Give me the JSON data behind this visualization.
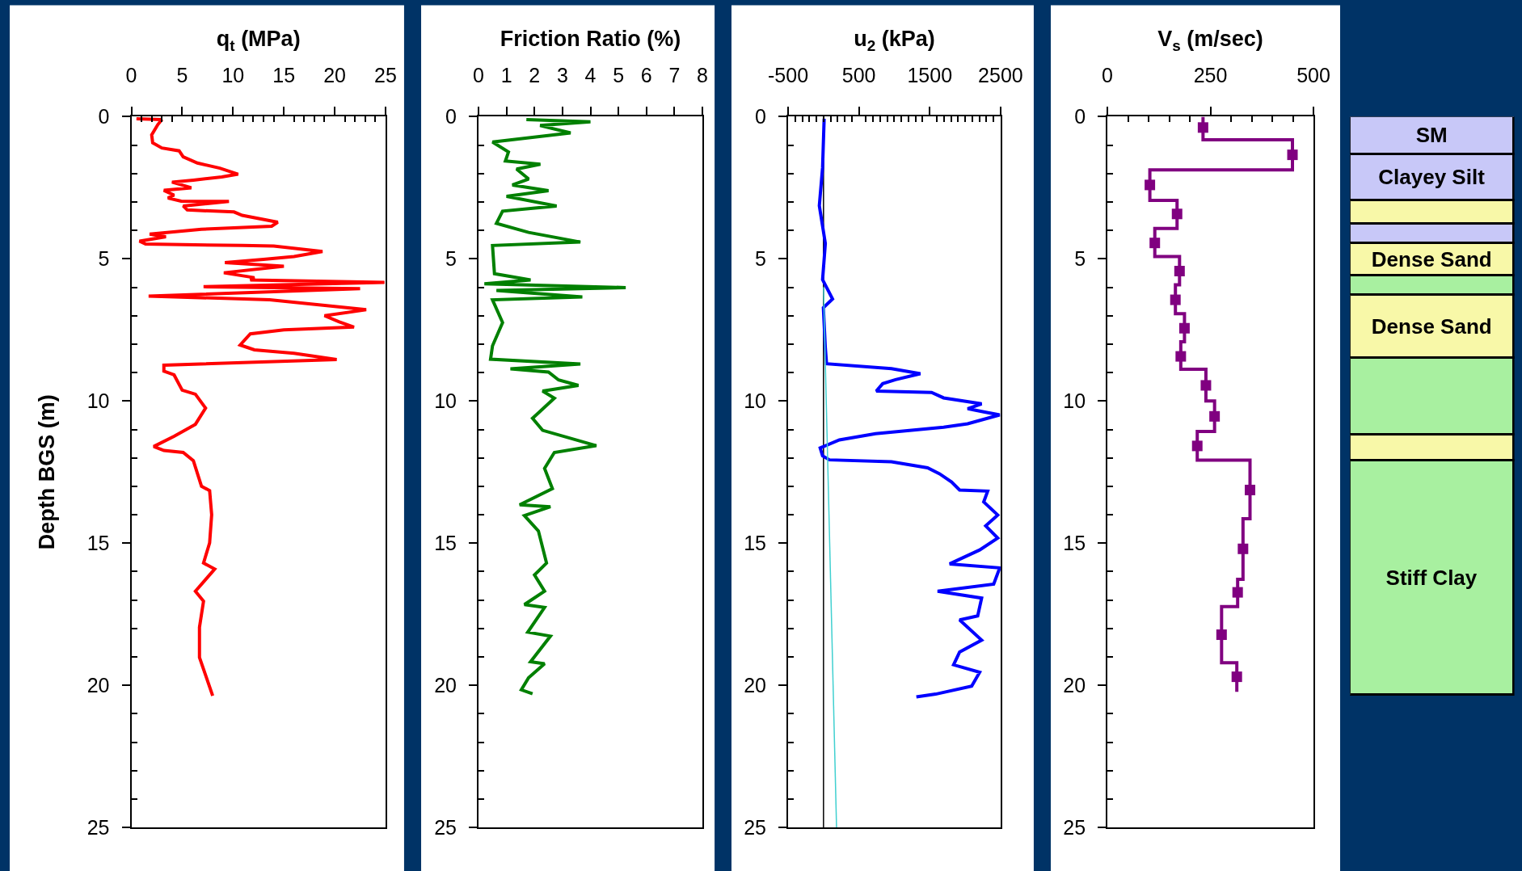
{
  "chart_data": [
    {
      "type": "line",
      "xlabel": "q$_{t}$ (MPa)",
      "ylabel": "Depth BGS (m)",
      "xlim": [
        0,
        25
      ],
      "ylim": [
        25,
        0
      ],
      "xticks": [
        0,
        {
          "value": 1,
          "label": null
        },
        {
          "value": 2,
          "label": null
        },
        {
          "value": 3,
          "label": null
        },
        {
          "value": 4,
          "label": null
        },
        5,
        {
          "value": 6,
          "label": null
        },
        {
          "value": 7,
          "label": null
        },
        {
          "value": 8,
          "label": null
        },
        {
          "value": 9,
          "label": null
        },
        10,
        {
          "value": 11,
          "label": null
        },
        {
          "value": 12,
          "label": null
        },
        {
          "value": 13,
          "label": null
        },
        {
          "value": 14,
          "label": null
        },
        15,
        {
          "value": 16,
          "label": null
        },
        {
          "value": 17,
          "label": null
        },
        {
          "value": 18,
          "label": null
        },
        {
          "value": 19,
          "label": null
        },
        20,
        {
          "value": 21,
          "label": null
        },
        {
          "value": 22,
          "label": null
        },
        {
          "value": 23,
          "label": null
        },
        {
          "value": 24,
          "label": null
        },
        25
      ],
      "yticks": [
        0,
        {
          "value": 1,
          "label": null
        },
        {
          "value": 2,
          "label": null
        },
        {
          "value": 3,
          "label": null
        },
        {
          "value": 4,
          "label": null
        },
        5,
        {
          "value": 6,
          "label": null
        },
        {
          "value": 7,
          "label": null
        },
        {
          "value": 8,
          "label": null
        },
        {
          "value": 9,
          "label": null
        },
        10,
        {
          "value": 11,
          "label": null
        },
        {
          "value": 12,
          "label": null
        },
        {
          "value": 13,
          "label": null
        },
        {
          "value": 14,
          "label": null
        },
        15,
        {
          "value": 16,
          "label": null
        },
        {
          "value": 17,
          "label": null
        },
        {
          "value": 18,
          "label": null
        },
        {
          "value": 19,
          "label": null
        },
        20,
        {
          "value": 21,
          "label": null
        },
        {
          "value": 22,
          "label": null
        },
        {
          "value": 23,
          "label": null
        },
        {
          "value": 24,
          "label": null
        },
        25
      ],
      "series": [
        {
          "color": "#ff0000",
          "x": [
            0.5,
            3.0,
            2.6,
            2.0,
            2.1,
            3.0,
            4.7,
            5.1,
            6.5,
            8.7,
            10.5,
            8.9,
            6.1,
            4.0,
            5.9,
            3.2,
            4.2,
            3.6,
            4.9,
            9.6,
            5.1,
            5.5,
            10.1,
            10.9,
            14.4,
            13.8,
            6.9,
            1.8,
            3.4,
            0.8,
            1.4,
            10.9,
            14.0,
            18.8,
            16.0,
            13.0,
            9.2,
            15.0,
            9.1,
            12.1,
            11.7,
            24.9,
            7.1,
            22.5,
            1.7,
            13.6,
            23.1,
            19.0,
            20.4,
            21.9,
            15.0,
            11.7,
            10.7,
            12.1,
            16.0,
            20.2,
            3.2,
            3.2,
            4.2,
            5.0,
            6.3,
            7.3,
            6.3,
            4.2,
            2.2,
            3.2,
            5.1,
            6.1,
            6.9,
            7.7,
            7.9,
            7.7,
            7.1,
            8.2,
            6.3,
            7.1,
            6.7,
            6.7,
            8.0
          ],
          "values": [
            0.07,
            0.1,
            0.28,
            0.64,
            0.92,
            1.1,
            1.2,
            1.41,
            1.63,
            1.81,
            2.02,
            2.12,
            2.23,
            2.3,
            2.5,
            2.59,
            2.76,
            2.86,
            2.97,
            2.98,
            3.14,
            3.28,
            3.35,
            3.47,
            3.71,
            3.85,
            3.96,
            4.13,
            4.22,
            4.38,
            4.48,
            4.53,
            4.55,
            4.74,
            4.92,
            5.02,
            5.13,
            5.26,
            5.49,
            5.66,
            5.74,
            5.83,
            5.98,
            6.05,
            6.31,
            6.44,
            6.79,
            7.0,
            7.21,
            7.4,
            7.5,
            7.64,
            8.03,
            8.2,
            8.32,
            8.54,
            8.74,
            8.95,
            9.08,
            9.62,
            9.76,
            10.25,
            10.82,
            11.24,
            11.6,
            11.74,
            11.81,
            12.1,
            13.0,
            13.15,
            14.0,
            14.99,
            15.7,
            15.91,
            16.69,
            17.04,
            17.96,
            19.02,
            20.37
          ]
        }
      ]
    },
    {
      "type": "line",
      "xlabel": "Friction Ratio (%)",
      "xlim": [
        0,
        8
      ],
      "ylim": [
        25,
        0
      ],
      "xticks": [
        0,
        1,
        2,
        3,
        4,
        5,
        6,
        7,
        8
      ],
      "yticks": [
        0,
        {
          "value": 1,
          "label": null
        },
        {
          "value": 2,
          "label": null
        },
        {
          "value": 3,
          "label": null
        },
        {
          "value": 4,
          "label": null
        },
        5,
        {
          "value": 6,
          "label": null
        },
        {
          "value": 7,
          "label": null
        },
        {
          "value": 8,
          "label": null
        },
        {
          "value": 9,
          "label": null
        },
        10,
        {
          "value": 11,
          "label": null
        },
        {
          "value": 12,
          "label": null
        },
        {
          "value": 13,
          "label": null
        },
        {
          "value": 14,
          "label": null
        },
        15,
        {
          "value": 16,
          "label": null
        },
        {
          "value": 17,
          "label": null
        },
        {
          "value": 18,
          "label": null
        },
        {
          "value": 19,
          "label": null
        },
        20,
        {
          "value": 21,
          "label": null
        },
        {
          "value": 22,
          "label": null
        },
        {
          "value": 23,
          "label": null
        },
        {
          "value": 24,
          "label": null
        },
        25
      ],
      "series": [
        {
          "color": "#008000",
          "x": [
            1.71,
            4.0,
            2.2,
            3.29,
            0.5,
            1.07,
            0.96,
            2.21,
            1.36,
            1.79,
            1.21,
            2.5,
            1.0,
            2.79,
            0.86,
            0.64,
            1.79,
            3.64,
            0.5,
            0.57,
            1.86,
            0.21,
            5.26,
            0.64,
            3.71,
            0.5,
            0.86,
            0.5,
            0.43,
            3.64,
            1.14,
            2.5,
            2.86,
            3.57,
            2.29,
            2.71,
            1.93,
            2.29,
            4.21,
            2.71,
            2.36,
            2.64,
            1.47,
            2.57,
            1.64,
            2.14,
            2.43,
            2.0,
            2.36,
            1.64,
            2.36,
            1.76,
            2.57,
            1.86,
            2.36,
            1.79,
            1.53,
            1.93
          ],
          "values": [
            0.1,
            0.18,
            0.31,
            0.57,
            0.89,
            1.24,
            1.56,
            1.67,
            1.84,
            2.19,
            2.4,
            2.6,
            2.8,
            3.14,
            3.32,
            3.75,
            4.07,
            4.41,
            4.53,
            5.52,
            5.74,
            5.88,
            6.01,
            6.11,
            6.34,
            6.44,
            7.24,
            8.06,
            8.53,
            8.7,
            8.87,
            8.98,
            9.26,
            9.45,
            9.65,
            9.9,
            10.61,
            11.03,
            11.57,
            11.81,
            12.37,
            13.08,
            13.65,
            13.72,
            14.03,
            14.57,
            15.7,
            16.12,
            16.69,
            17.16,
            17.26,
            18.13,
            18.27,
            19.17,
            19.24,
            19.73,
            20.16,
            20.3
          ]
        }
      ]
    },
    {
      "type": "line",
      "xlabel": "u$_{2}$ (kPa)",
      "xlim": [
        -500,
        2500
      ],
      "ylim": [
        25,
        0
      ],
      "xticks": [
        -500,
        {
          "value": -400,
          "label": null
        },
        {
          "value": -300,
          "label": null
        },
        {
          "value": -200,
          "label": null
        },
        {
          "value": -100,
          "label": null
        },
        {
          "value": 0,
          "label": null
        },
        {
          "value": 100,
          "label": null
        },
        {
          "value": 200,
          "label": null
        },
        {
          "value": 300,
          "label": null
        },
        {
          "value": 400,
          "label": null
        },
        500,
        {
          "value": 600,
          "label": null
        },
        {
          "value": 700,
          "label": null
        },
        {
          "value": 800,
          "label": null
        },
        {
          "value": 900,
          "label": null
        },
        {
          "value": 1000,
          "label": null
        },
        {
          "value": 1100,
          "label": null
        },
        {
          "value": 1200,
          "label": null
        },
        {
          "value": 1300,
          "label": null
        },
        {
          "value": 1400,
          "label": null
        },
        1500,
        {
          "value": 1600,
          "label": null
        },
        {
          "value": 1700,
          "label": null
        },
        {
          "value": 1800,
          "label": null
        },
        {
          "value": 1900,
          "label": null
        },
        {
          "value": 2000,
          "label": null
        },
        {
          "value": 2100,
          "label": null
        },
        {
          "value": 2200,
          "label": null
        },
        {
          "value": 2300,
          "label": null
        },
        {
          "value": 2400,
          "label": null
        },
        2500
      ],
      "yticks": [
        0,
        {
          "value": 1,
          "label": null
        },
        {
          "value": 2,
          "label": null
        },
        {
          "value": 3,
          "label": null
        },
        {
          "value": 4,
          "label": null
        },
        5,
        {
          "value": 6,
          "label": null
        },
        {
          "value": 7,
          "label": null
        },
        {
          "value": 8,
          "label": null
        },
        {
          "value": 9,
          "label": null
        },
        10,
        {
          "value": 11,
          "label": null
        },
        {
          "value": 12,
          "label": null
        },
        {
          "value": 13,
          "label": null
        },
        {
          "value": 14,
          "label": null
        },
        15,
        {
          "value": 16,
          "label": null
        },
        {
          "value": 17,
          "label": null
        },
        {
          "value": 18,
          "label": null
        },
        {
          "value": 19,
          "label": null
        },
        20,
        {
          "value": 21,
          "label": null
        },
        {
          "value": 22,
          "label": null
        },
        {
          "value": 23,
          "label": null
        },
        {
          "value": 24,
          "label": null
        },
        25
      ],
      "ref_lines": [
        {
          "axis": "x",
          "value": 0,
          "color": "#000000"
        }
      ],
      "series": [
        {
          "color": "#0000ff",
          "x": [
            9,
            -13,
            -59,
            26,
            -13,
            128,
            -2,
            26,
            43,
            960,
            1368,
            1017,
            836,
            745,
            1526,
            1696,
            2233,
            2035,
            2262,
            2488,
            2035,
            1696,
            734,
            224,
            -47,
            -13,
            83,
            960,
            1469,
            1639,
            1809,
            1922,
            2318,
            2262,
            2460,
            2290,
            2460,
            2205,
            1781,
            2488,
            2403,
            1611,
            2233,
            2177,
            1922,
            2233,
            1922,
            1837,
            2205,
            2092,
            1583,
            1311
          ],
          "values": [
            0.07,
            1.79,
            3.13,
            4.46,
            5.73,
            6.41,
            6.72,
            8.13,
            8.69,
            8.86,
            9.04,
            9.25,
            9.39,
            9.65,
            9.7,
            9.89,
            10.1,
            10.27,
            10.38,
            10.49,
            10.8,
            10.92,
            11.15,
            11.37,
            11.65,
            11.93,
            12.07,
            12.14,
            12.35,
            12.56,
            12.85,
            13.13,
            13.17,
            13.55,
            14.01,
            14.39,
            14.82,
            15.24,
            15.73,
            15.87,
            16.44,
            16.69,
            16.93,
            17.56,
            17.7,
            18.41,
            18.83,
            19.28,
            19.54,
            20.03,
            20.31,
            20.41
          ]
        },
        {
          "color": "#40d0d0",
          "x": [
            0,
            184
          ],
          "values": [
            6,
            25
          ]
        }
      ]
    },
    {
      "type": "line",
      "xlabel": "V$_{s}$ (m/sec)",
      "xlim": [
        0,
        500
      ],
      "ylim": [
        25,
        0
      ],
      "xticks": [
        0,
        {
          "value": 50,
          "label": null
        },
        {
          "value": 100,
          "label": null
        },
        {
          "value": 150,
          "label": null
        },
        {
          "value": 200,
          "label": null
        },
        250,
        {
          "value": 300,
          "label": null
        },
        {
          "value": 350,
          "label": null
        },
        {
          "value": 400,
          "label": null
        },
        {
          "value": 450,
          "label": null
        },
        500
      ],
      "yticks": [
        0,
        {
          "value": 1,
          "label": null
        },
        {
          "value": 2,
          "label": null
        },
        {
          "value": 3,
          "label": null
        },
        {
          "value": 4,
          "label": null
        },
        5,
        {
          "value": 6,
          "label": null
        },
        {
          "value": 7,
          "label": null
        },
        {
          "value": 8,
          "label": null
        },
        {
          "value": 9,
          "label": null
        },
        10,
        {
          "value": 11,
          "label": null
        },
        {
          "value": 12,
          "label": null
        },
        {
          "value": 13,
          "label": null
        },
        {
          "value": 14,
          "label": null
        },
        15,
        {
          "value": 16,
          "label": null
        },
        {
          "value": 17,
          "label": null
        },
        {
          "value": 18,
          "label": null
        },
        {
          "value": 19,
          "label": null
        },
        20,
        {
          "value": 21,
          "label": null
        },
        {
          "value": 22,
          "label": null
        },
        {
          "value": 23,
          "label": null
        },
        {
          "value": 24,
          "label": null
        },
        25
      ],
      "series": [
        {
          "type": "step",
          "color": "#800080",
          "x": [
            232,
            449,
            103,
            169,
            115,
            175,
            165,
            187,
            178,
            239,
            260,
            218,
            346,
            329,
            316,
            277,
            314,
            314
          ],
          "values": [
            0,
            0.81,
            1.87,
            2.94,
            3.93,
            4.92,
            5.91,
            6.93,
            7.92,
            8.88,
            10.0,
            11.07,
            12.08,
            14.14,
            16.27,
            17.23,
            19.21,
            20.23
          ]
        },
        {
          "type": "scatter",
          "marker": "square",
          "color": "#800080",
          "x": [
            232,
            449,
            103,
            169,
            115,
            175,
            165,
            187,
            178,
            239,
            260,
            218,
            346,
            329,
            316,
            277,
            314
          ],
          "values": [
            0.38,
            1.34,
            2.4,
            3.42,
            4.44,
            5.43,
            6.44,
            7.44,
            8.43,
            9.45,
            10.54,
            11.58,
            13.13,
            15.2,
            16.73,
            18.22,
            19.7
          ]
        }
      ]
    },
    {
      "type": "bar",
      "stacked": true,
      "categories": [
        null
      ],
      "ylim": [
        25,
        0
      ],
      "tick_labels": false,
      "series": [
        {
          "name": "SM",
          "color": "#c8c8f8",
          "values": [
            1.34
          ]
        },
        {
          "name": "Clayey Silt",
          "color": "#c8c8f8",
          "values": [
            1.62
          ]
        },
        {
          "color": "#f8f8a8",
          "values": [
            0.81
          ]
        },
        {
          "color": "#c8c8f8",
          "values": [
            0.68
          ]
        },
        {
          "name": "Dense Sand",
          "color": "#f8f8a8",
          "values": [
            1.15
          ]
        },
        {
          "color": "#a8f0a0",
          "values": [
            0.67
          ]
        },
        {
          "name": "Dense Sand",
          "color": "#f8f8a8",
          "values": [
            2.24
          ]
        },
        {
          "color": "#a8f0a0",
          "values": [
            2.69
          ]
        },
        {
          "color": "#f8f8a8",
          "values": [
            0.9
          ]
        },
        {
          "name": "Stiff Clay",
          "color": "#a8f0a0",
          "values": [
            8.25
          ]
        }
      ]
    }
  ]
}
